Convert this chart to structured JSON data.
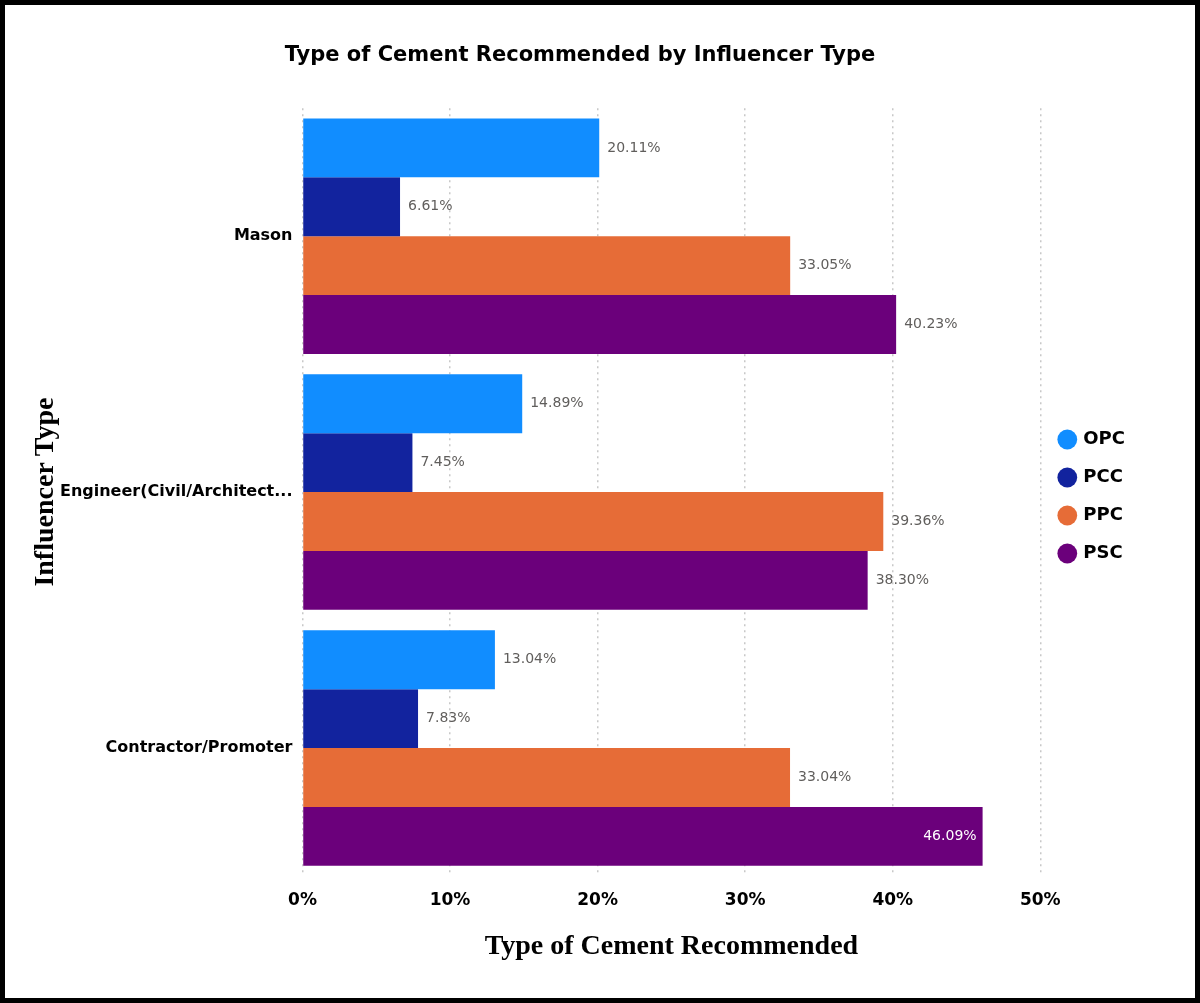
{
  "chart_data": {
    "type": "bar",
    "orientation": "horizontal",
    "title": "Type of Cement Recommended by Influencer Type",
    "xlabel": "Type of Cement Recommended",
    "ylabel": "Influencer Type",
    "categories": [
      "Mason",
      "Engineer(Civil/Architect...",
      "Contractor/Promoter"
    ],
    "series": [
      {
        "name": "OPC",
        "color": "#118dff",
        "values": [
          20.11,
          14.89,
          13.04
        ],
        "value_labels": [
          "20.11%",
          "14.89%",
          "13.04%"
        ]
      },
      {
        "name": "PCC",
        "color": "#12239e",
        "values": [
          6.61,
          7.45,
          7.83
        ],
        "value_labels": [
          "6.61%",
          "7.45%",
          "7.83%"
        ]
      },
      {
        "name": "PPC",
        "color": "#e66c37",
        "values": [
          33.05,
          39.36,
          33.04
        ],
        "value_labels": [
          "33.05%",
          "39.36%",
          "33.04%"
        ]
      },
      {
        "name": "PSC",
        "color": "#6b007b",
        "values": [
          40.23,
          38.3,
          46.09
        ],
        "value_labels": [
          "40.23%",
          "38.30%",
          "46.09%"
        ]
      }
    ],
    "xlim": [
      0,
      50
    ],
    "xticks": [
      {
        "value": 0,
        "label": "0%"
      },
      {
        "value": 10,
        "label": "10%"
      },
      {
        "value": 20,
        "label": "20%"
      },
      {
        "value": 30,
        "label": "30%"
      },
      {
        "value": 40,
        "label": "40%"
      },
      {
        "value": 50,
        "label": "50%"
      }
    ],
    "grid": "x",
    "legend": "right",
    "marker": "circle"
  }
}
